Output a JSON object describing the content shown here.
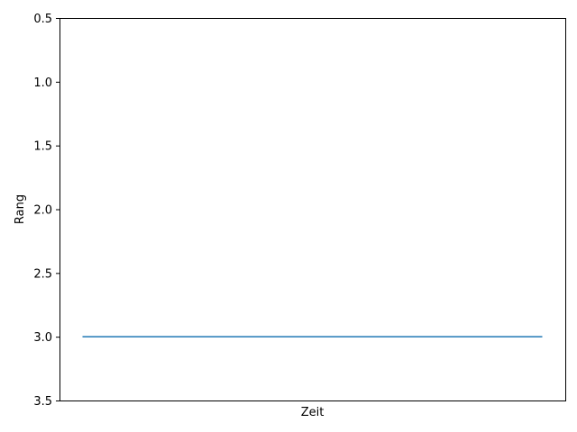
{
  "chart_data": {
    "type": "line",
    "title": "",
    "xlabel": "Zeit",
    "ylabel": "Rang",
    "y_inverted": true,
    "ylim": [
      3.5,
      0.5
    ],
    "yticks": [
      "0.5",
      "1.0",
      "1.5",
      "2.0",
      "2.5",
      "3.0",
      "3.5"
    ],
    "ytick_values": [
      0.5,
      1.0,
      1.5,
      2.0,
      2.5,
      3.0,
      3.5
    ],
    "xticks": [],
    "grid": false,
    "series": [
      {
        "x": [
          0,
          1
        ],
        "y": [
          3.0,
          3.0
        ],
        "color": "#1f77b4"
      }
    ]
  }
}
